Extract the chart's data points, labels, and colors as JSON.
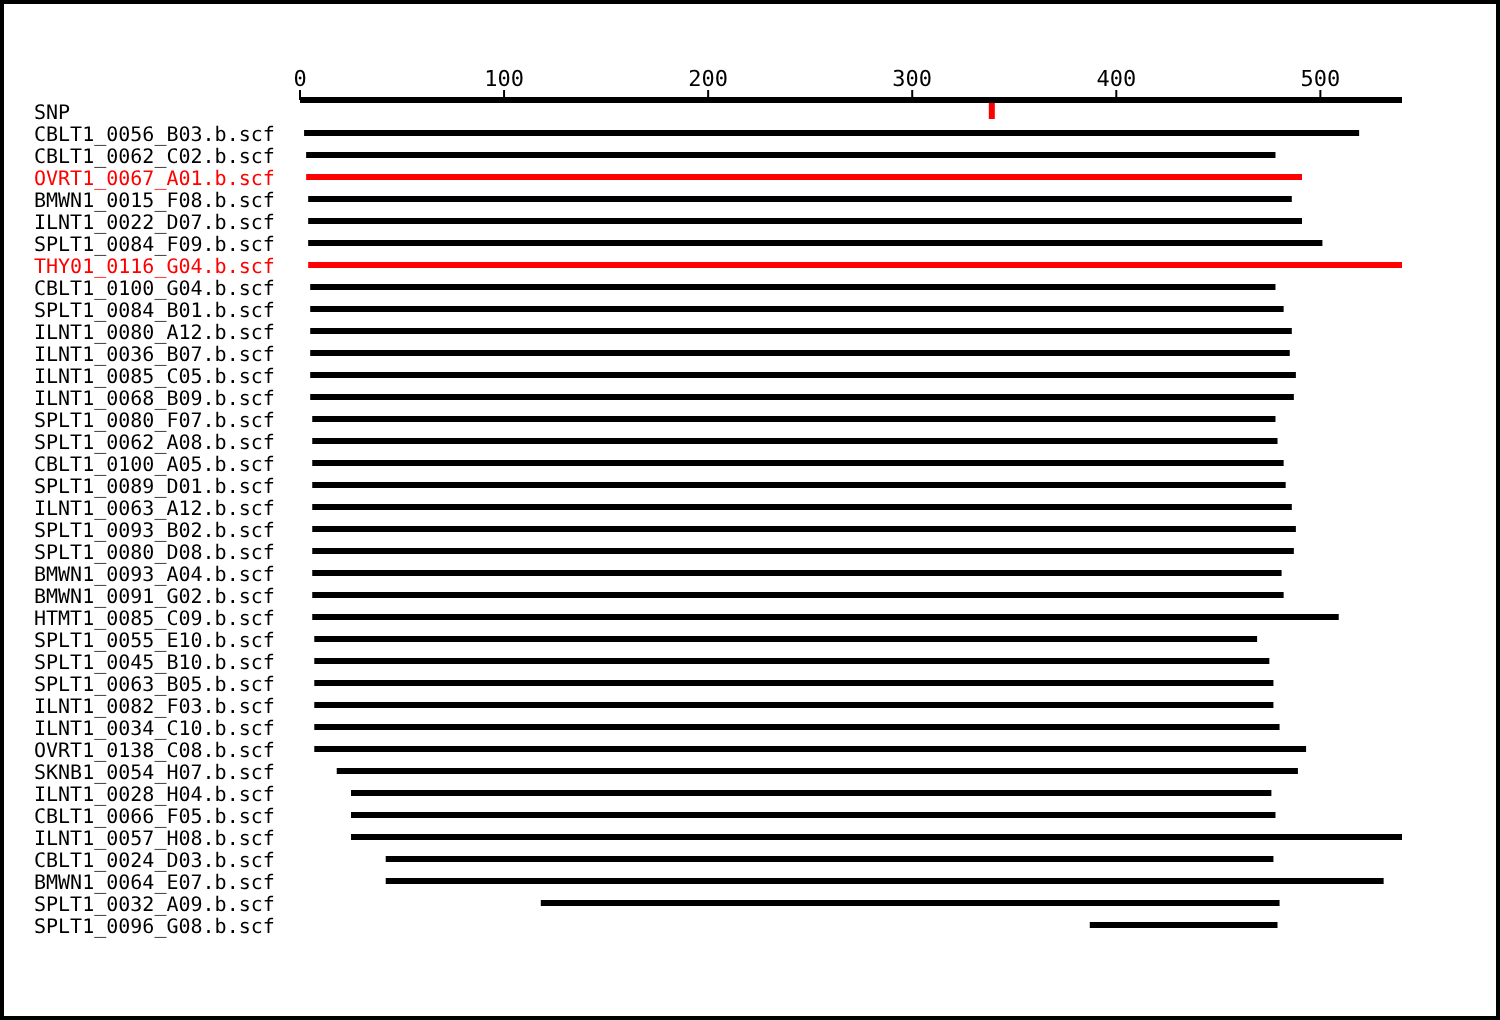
{
  "chart_data": {
    "type": "bar",
    "orientation": "horizontal",
    "categories": [
      "SNP",
      "CBLT1_0056_B03.b.scf",
      "CBLT1_0062_C02.b.scf",
      "OVRT1_0067_A01.b.scf",
      "BMWN1_0015_F08.b.scf",
      "ILNT1_0022_D07.b.scf",
      "SPLT1_0084_F09.b.scf",
      "THY01_0116_G04.b.scf",
      "CBLT1_0100_G04.b.scf",
      "SPLT1_0084_B01.b.scf",
      "ILNT1_0080_A12.b.scf",
      "ILNT1_0036_B07.b.scf",
      "ILNT1_0085_C05.b.scf",
      "ILNT1_0068_B09.b.scf",
      "SPLT1_0080_F07.b.scf",
      "SPLT1_0062_A08.b.scf",
      "CBLT1_0100_A05.b.scf",
      "SPLT1_0089_D01.b.scf",
      "ILNT1_0063_A12.b.scf",
      "SPLT1_0093_B02.b.scf",
      "SPLT1_0080_D08.b.scf",
      "BMWN1_0093_A04.b.scf",
      "BMWN1_0091_G02.b.scf",
      "HTMT1_0085_C09.b.scf",
      "SPLT1_0055_E10.b.scf",
      "SPLT1_0045_B10.b.scf",
      "SPLT1_0063_B05.b.scf",
      "ILNT1_0082_F03.b.scf",
      "ILNT1_0034_C10.b.scf",
      "OVRT1_0138_C08.b.scf",
      "SKNB1_0054_H07.b.scf",
      "ILNT1_0028_H04.b.scf",
      "CBLT1_0066_F05.b.scf",
      "ILNT1_0057_H08.b.scf",
      "CBLT1_0024_D03.b.scf",
      "BMWN1_0064_E07.b.scf",
      "SPLT1_0032_A09.b.scf",
      "SPLT1_0096_G08.b.scf"
    ],
    "series": [
      {
        "type": "scatter",
        "color": "#ff0000",
        "values": [
          339,
          null,
          null,
          null,
          null,
          null,
          null,
          null,
          null,
          null,
          null,
          null,
          null,
          null,
          null,
          null,
          null,
          null,
          null,
          null,
          null,
          null,
          null,
          null,
          null,
          null,
          null,
          null,
          null,
          null,
          null,
          null,
          null,
          null,
          null,
          null,
          null,
          null
        ]
      },
      {
        "type": "bar",
        "base": [
          null,
          2,
          3,
          3,
          4,
          4,
          4,
          4,
          5,
          5,
          5,
          5,
          5,
          5,
          6,
          6,
          6,
          6,
          6,
          6,
          6,
          6,
          6,
          6,
          7,
          7,
          7,
          7,
          7,
          7,
          18,
          25,
          25,
          25,
          42,
          42,
          118,
          387
        ],
        "values": [
          null,
          517,
          475,
          488,
          482,
          487,
          497,
          537,
          473,
          477,
          481,
          480,
          483,
          482,
          472,
          473,
          476,
          477,
          480,
          482,
          481,
          475,
          476,
          503,
          462,
          468,
          470,
          470,
          473,
          486,
          471,
          451,
          453,
          516,
          435,
          489,
          362,
          92
        ],
        "colors": [
          "#000000",
          "#000000",
          "#000000",
          "#ff0000",
          "#000000",
          "#000000",
          "#000000",
          "#ff0000",
          "#000000",
          "#000000",
          "#000000",
          "#000000",
          "#000000",
          "#000000",
          "#000000",
          "#000000",
          "#000000",
          "#000000",
          "#000000",
          "#000000",
          "#000000",
          "#000000",
          "#000000",
          "#000000",
          "#000000",
          "#000000",
          "#000000",
          "#000000",
          "#000000",
          "#000000",
          "#000000",
          "#000000",
          "#000000",
          "#000000",
          "#000000",
          "#000000",
          "#000000",
          "#000000"
        ]
      }
    ],
    "xlim": [
      0,
      540
    ],
    "xticks": [
      0,
      100,
      200,
      300,
      400,
      500
    ],
    "grid": false,
    "legend": false
  }
}
